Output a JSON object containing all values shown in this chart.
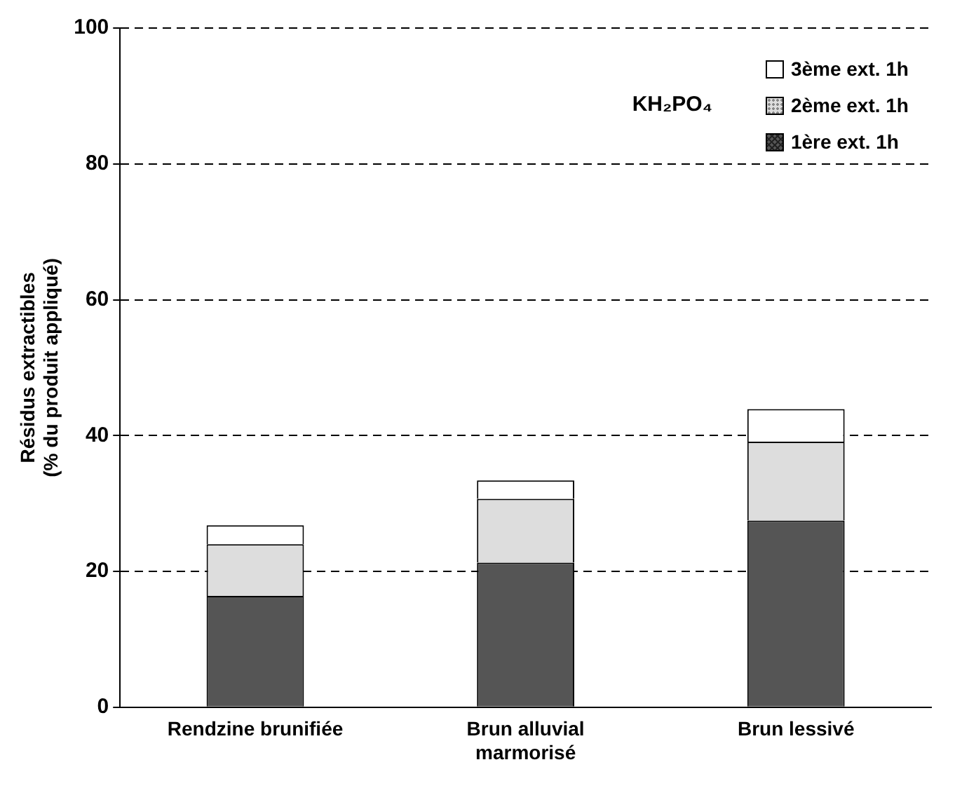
{
  "chart_data": {
    "type": "bar",
    "stacked": true,
    "ylabel": "Résidus extractibles\n(% du produit appliqué)",
    "categories": [
      "Rendzine brunifiée",
      "Brun alluvial marmorisé",
      "Brun lessivé"
    ],
    "series": [
      {
        "name": "1ère  ext. 1h",
        "color": "#555555",
        "values": [
          16.4,
          21.3,
          27.5
        ]
      },
      {
        "name": "2ème ext. 1h",
        "color": "#dddddd",
        "values": [
          7.6,
          9.4,
          11.6
        ]
      },
      {
        "name": "3ème ext. 1h",
        "color": "#ffffff",
        "values": [
          2.8,
          2.7,
          4.8
        ]
      }
    ],
    "ylim": [
      0,
      100
    ],
    "yticks": [
      0,
      20,
      40,
      60,
      80,
      100
    ],
    "grid": "y",
    "legend": "top right",
    "annotations": [
      "KH₂PO₄"
    ]
  }
}
